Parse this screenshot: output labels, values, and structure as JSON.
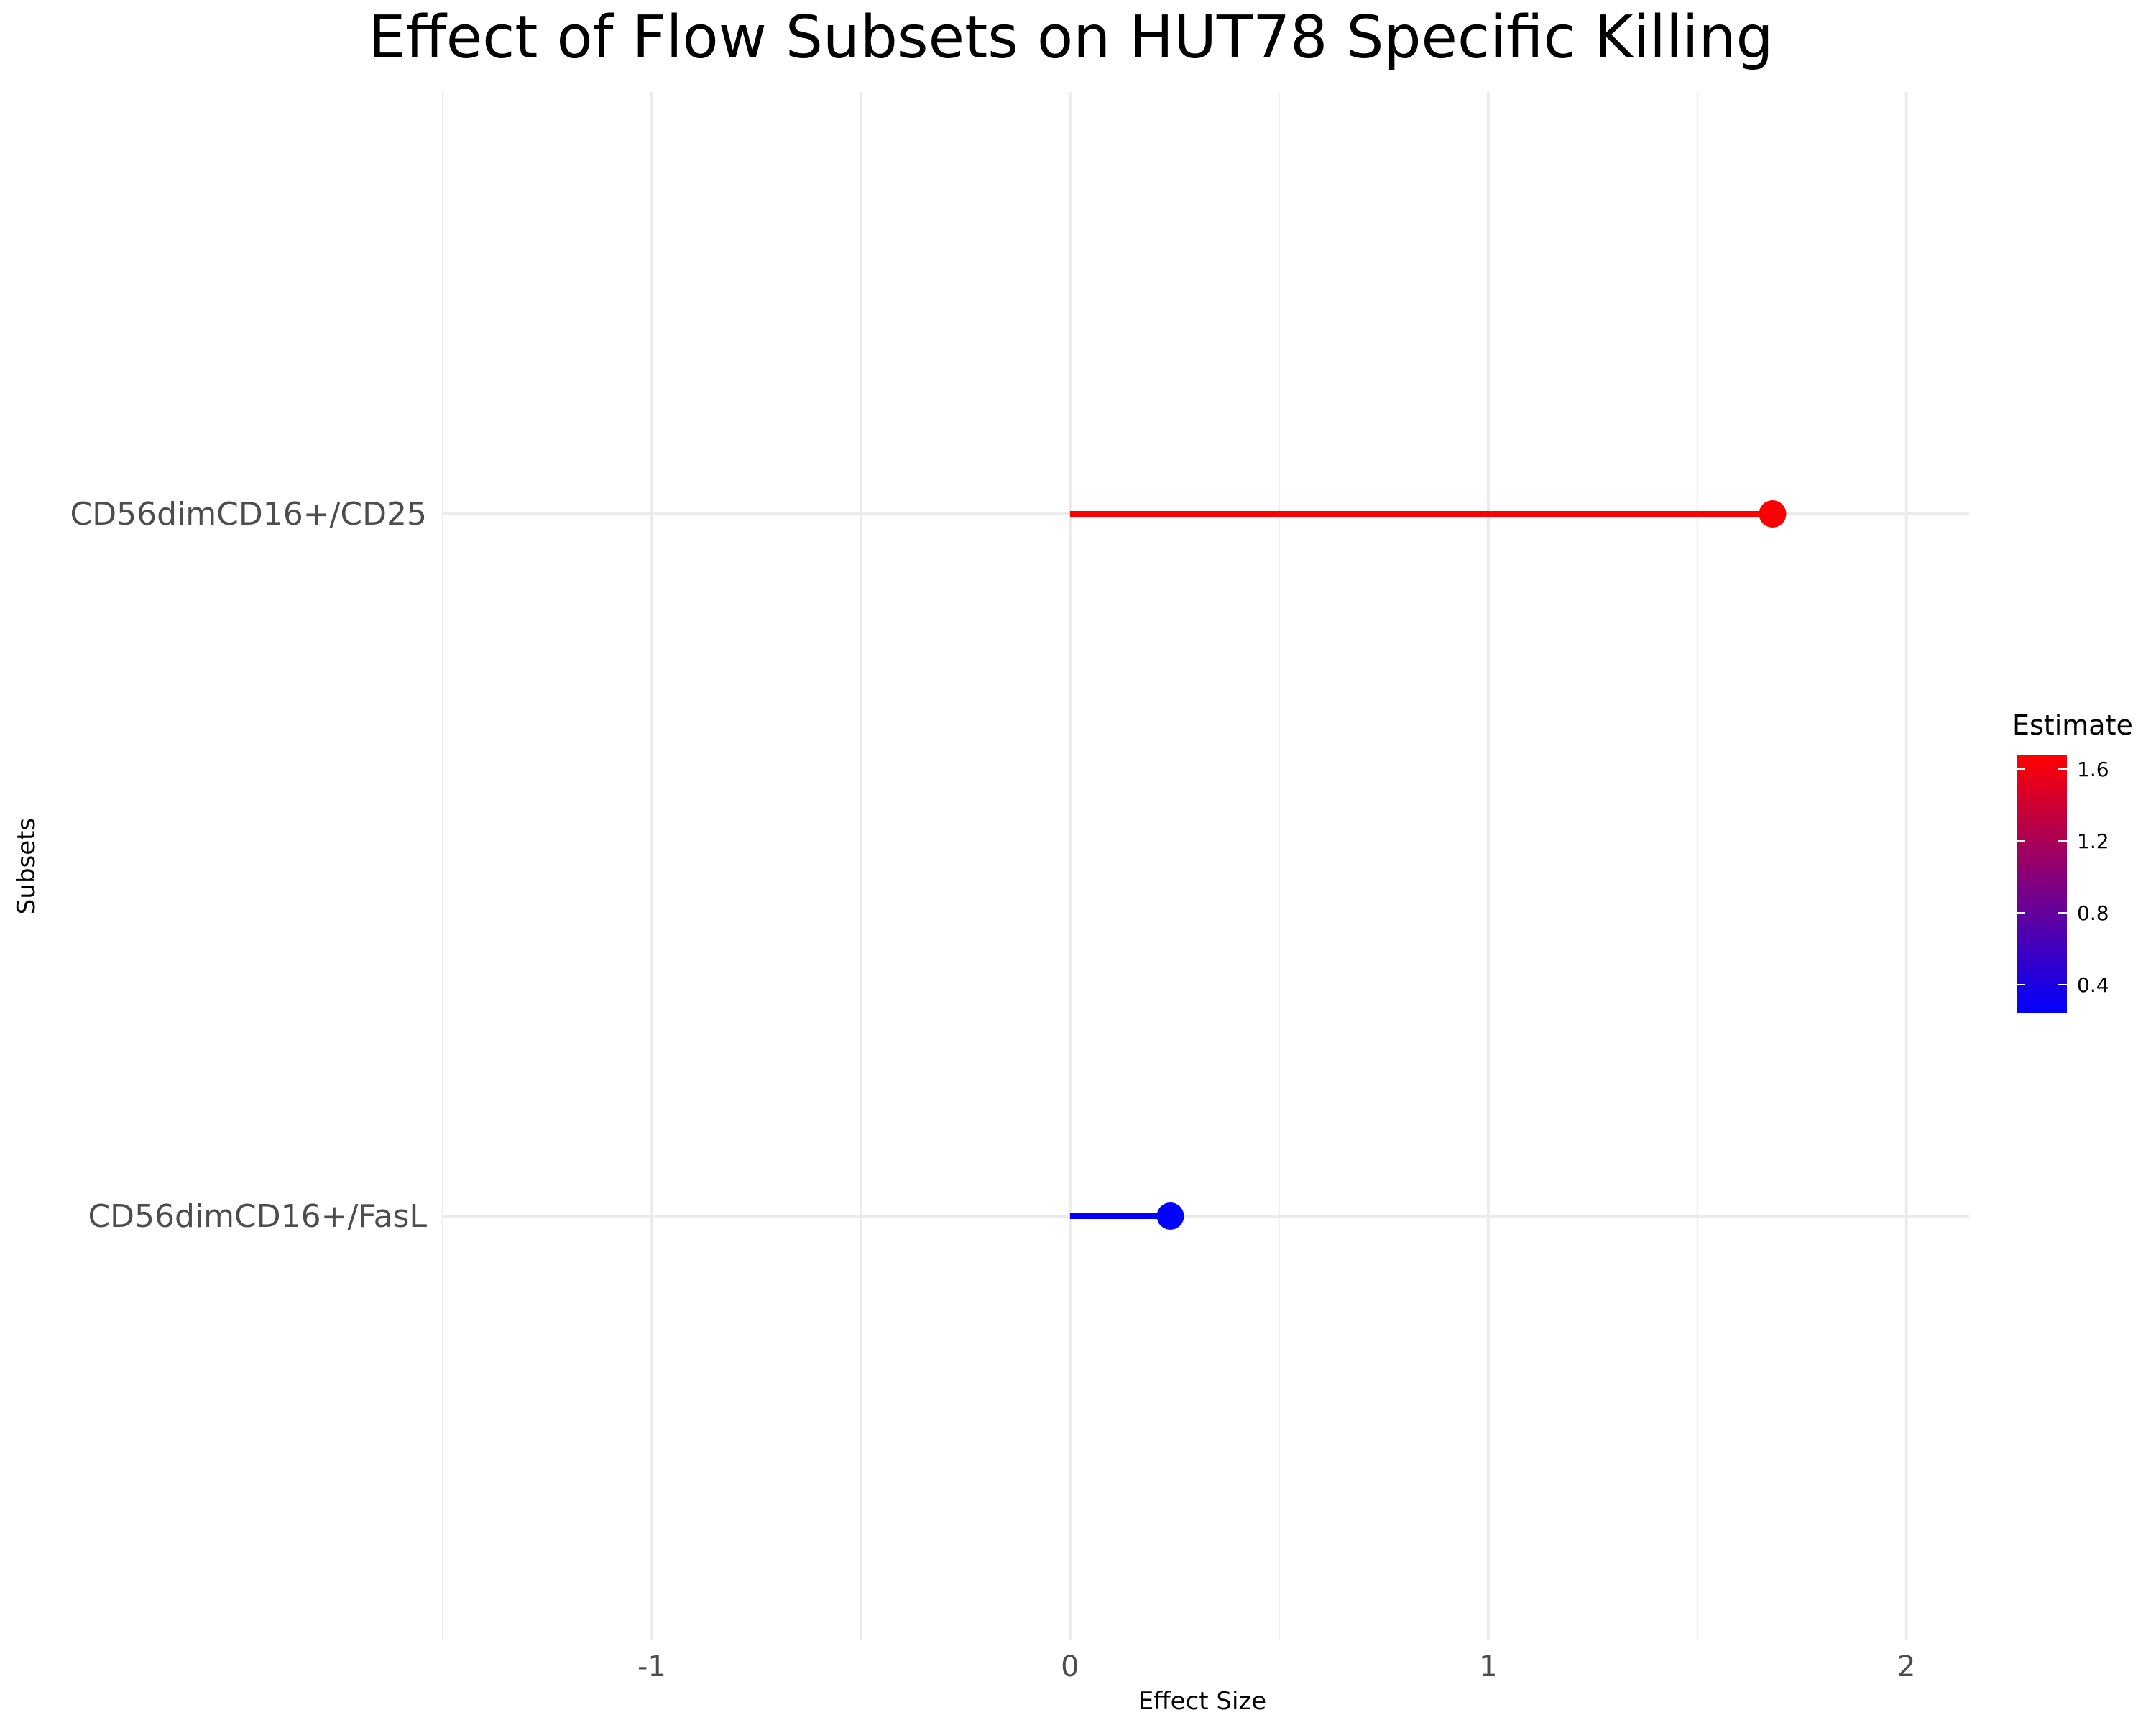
{
  "chart_data": {
    "type": "lollipop",
    "title": "Effect of Flow Subsets on HUT78 Specific Killing",
    "xlabel": "Effect Size",
    "ylabel": "Subsets",
    "categories": [
      "CD56dimCD16+/CD25",
      "CD56dimCD16+/FasL"
    ],
    "values": [
      1.68,
      0.24
    ],
    "baseline": 0,
    "xlim": [
      -1.5,
      2.15
    ],
    "x_ticks": [
      -1,
      0,
      1,
      2
    ],
    "x_tick_labels": [
      "-1",
      "0",
      "1",
      "2"
    ],
    "grid": true,
    "legend": {
      "title": "Estimate",
      "placement": "right",
      "type": "colorbar",
      "range": [
        0.24,
        1.68
      ],
      "ticks": [
        0.4,
        0.8,
        1.2,
        1.6
      ],
      "tick_labels": [
        "0.4",
        "0.8",
        "1.2",
        "1.6"
      ],
      "low_color": "#0000ff",
      "high_color": "#ff0000"
    }
  }
}
